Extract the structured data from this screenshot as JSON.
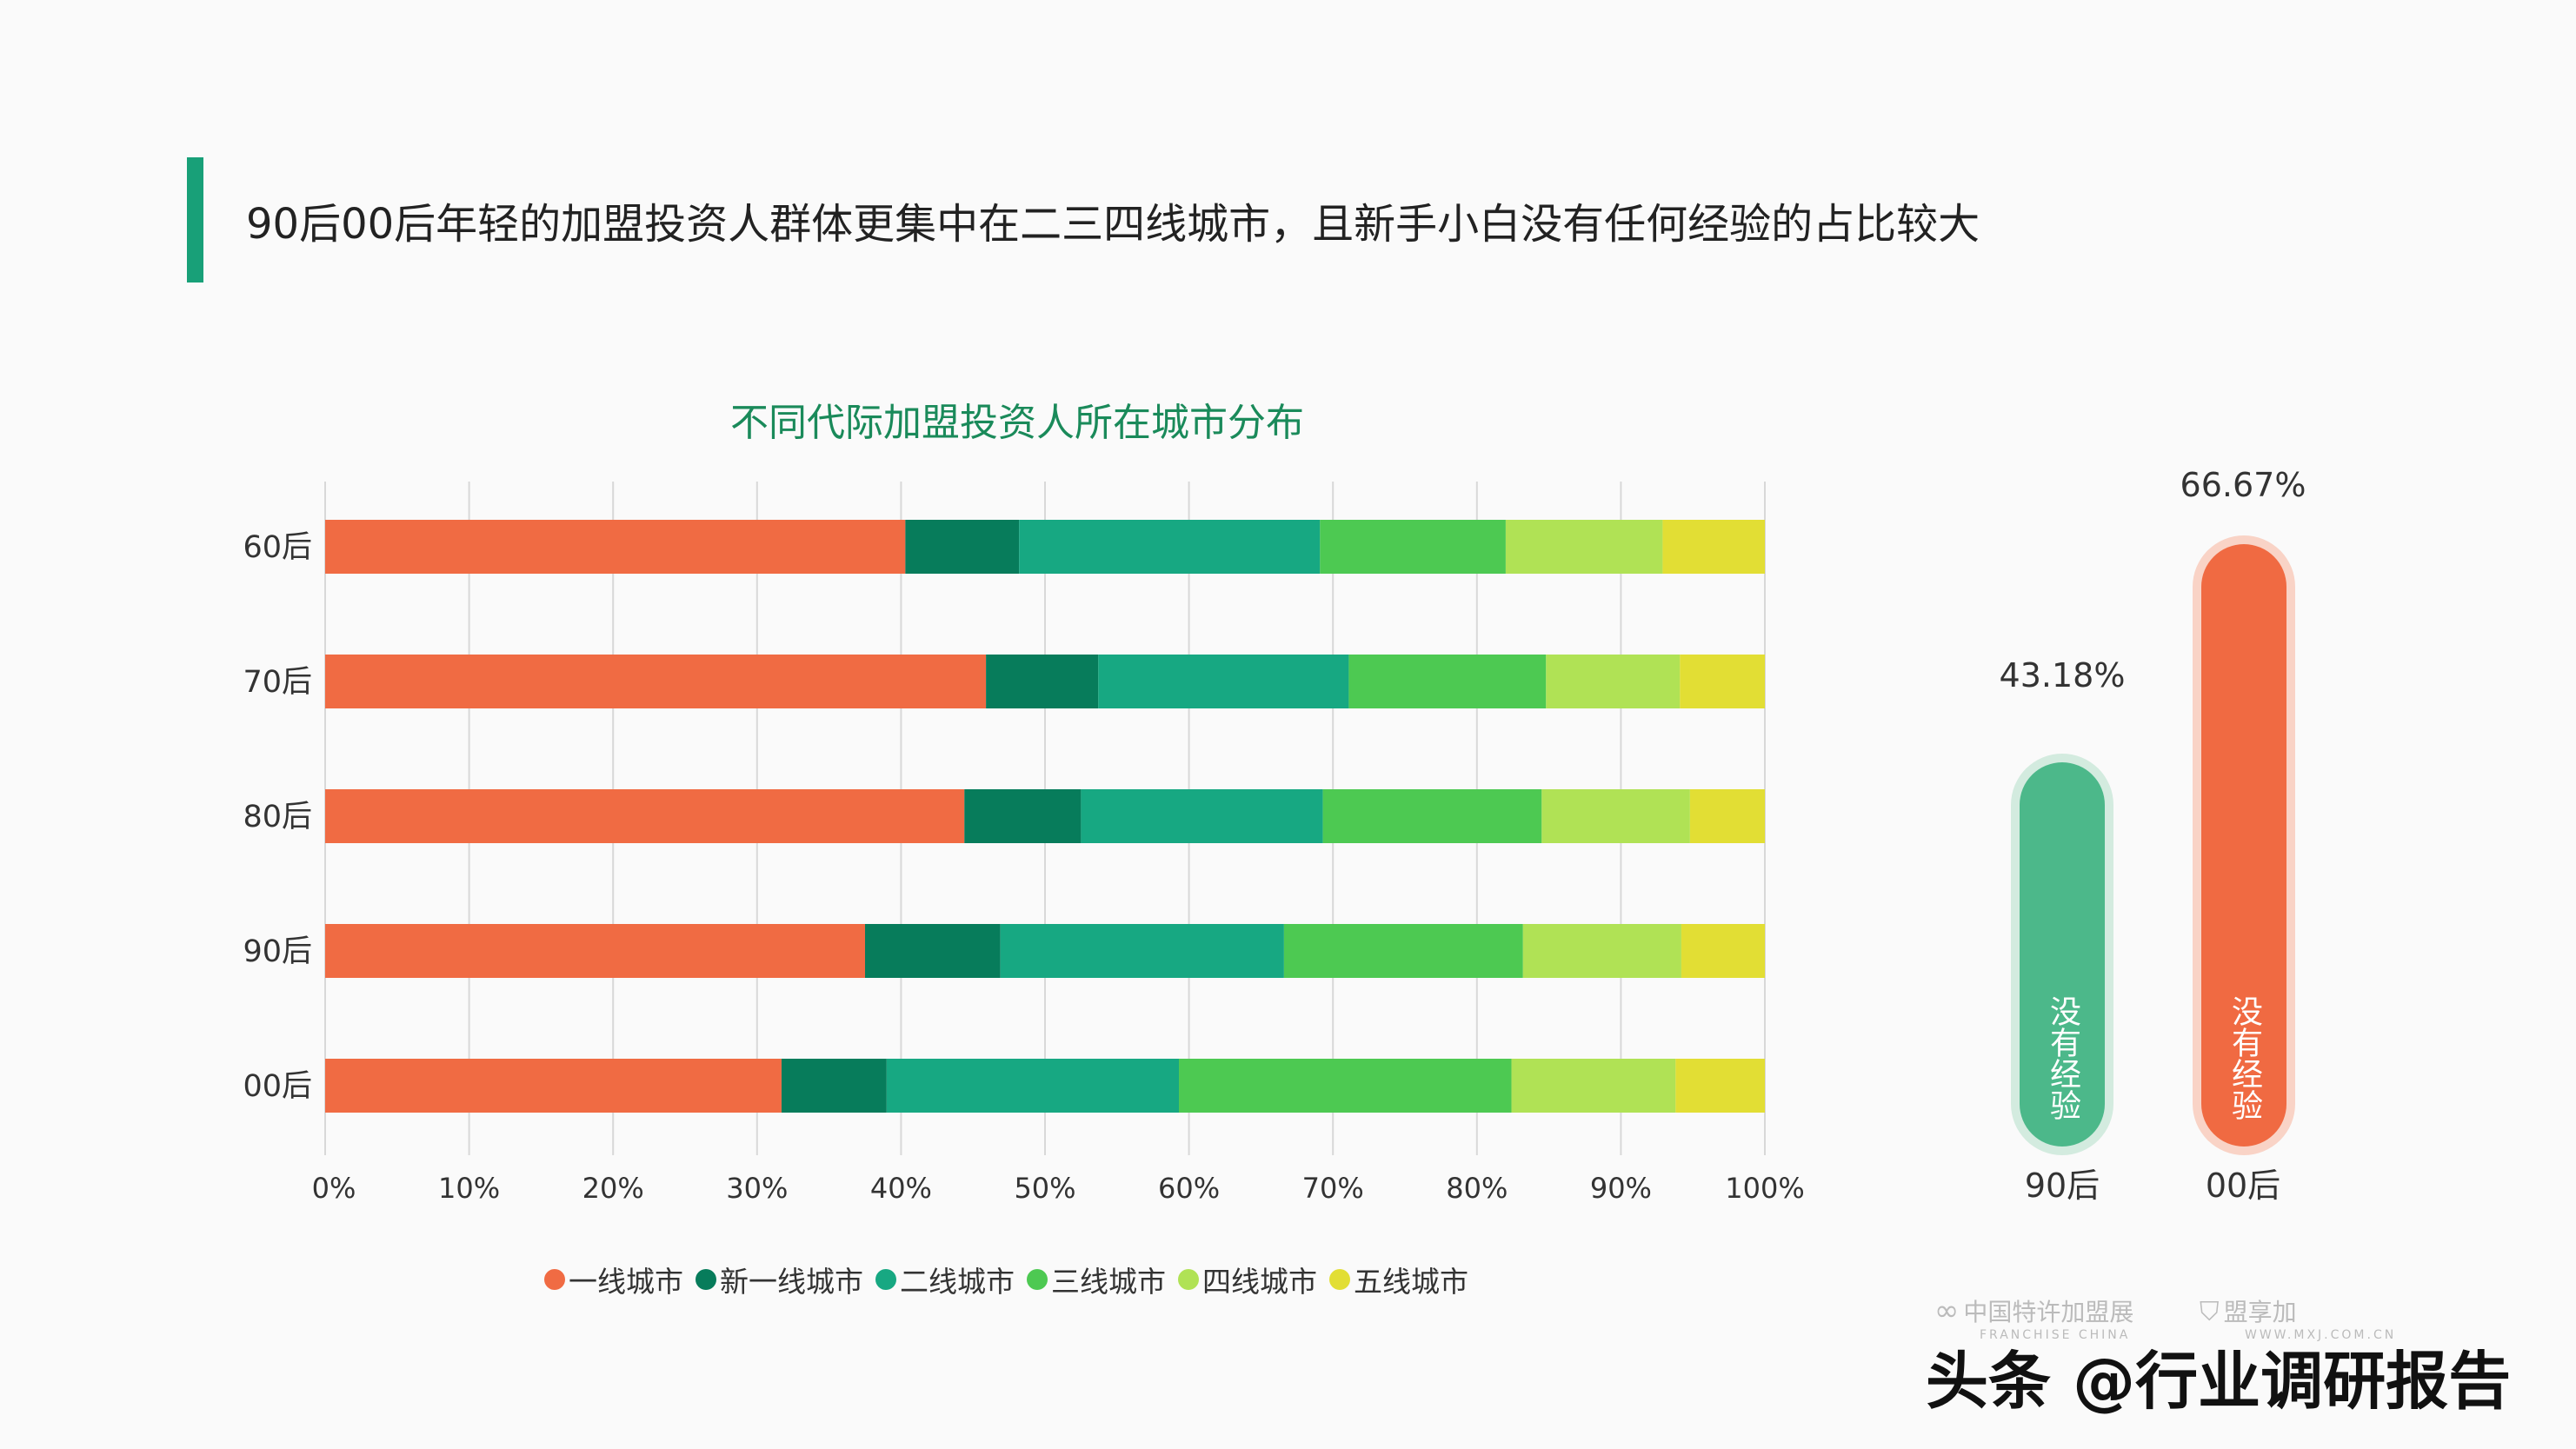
{
  "title": "90后00后年轻的加盟投资人群体更集中在二三四线城市，且新手小白没有任何经验的占比较大",
  "chart_data": [
    {
      "type": "bar",
      "orientation": "horizontal",
      "stacked": true,
      "title": "不同代际加盟投资人所在城市分布",
      "categories": [
        "60后",
        "70后",
        "80后",
        "90后",
        "00后"
      ],
      "xlim": [
        0,
        100
      ],
      "xticks": [
        "0%",
        "10%",
        "20%",
        "30%",
        "40%",
        "50%",
        "60%",
        "70%",
        "80%",
        "90%",
        "100%"
      ],
      "grid": true,
      "legend_position": "bottom",
      "series": [
        {
          "name": "一线城市",
          "color": "#f06b43",
          "values": [
            40.3,
            45.9,
            44.4,
            37.5,
            31.7
          ]
        },
        {
          "name": "新一线城市",
          "color": "#077c5b",
          "values": [
            7.9,
            7.8,
            8.1,
            9.4,
            7.3
          ]
        },
        {
          "name": "二线城市",
          "color": "#17a882",
          "values": [
            20.9,
            17.4,
            16.8,
            19.7,
            20.3
          ]
        },
        {
          "name": "三线城市",
          "color": "#4dc952",
          "values": [
            12.9,
            13.7,
            15.2,
            16.6,
            23.1
          ]
        },
        {
          "name": "四线城市",
          "color": "#b0e255",
          "values": [
            10.9,
            9.3,
            10.3,
            11.0,
            11.4
          ]
        },
        {
          "name": "五线城市",
          "color": "#e2de34",
          "values": [
            7.1,
            5.9,
            5.2,
            5.8,
            6.2
          ]
        }
      ]
    },
    {
      "type": "bar",
      "label": "没有经验",
      "categories": [
        "90后",
        "00后"
      ],
      "values": [
        43.18,
        66.67
      ],
      "data_labels": [
        "43.18%",
        "66.67%"
      ],
      "colors": [
        "#4cb88a",
        "#f06a42"
      ]
    }
  ],
  "watermark": {
    "logo1": "中国特许加盟展",
    "logo1_sub": "FRANCHISE CHINA",
    "logo2": "盟享加",
    "logo2_sub": "WWW.MXJ.COM.CN",
    "source": "头条 @行业调研报告"
  }
}
